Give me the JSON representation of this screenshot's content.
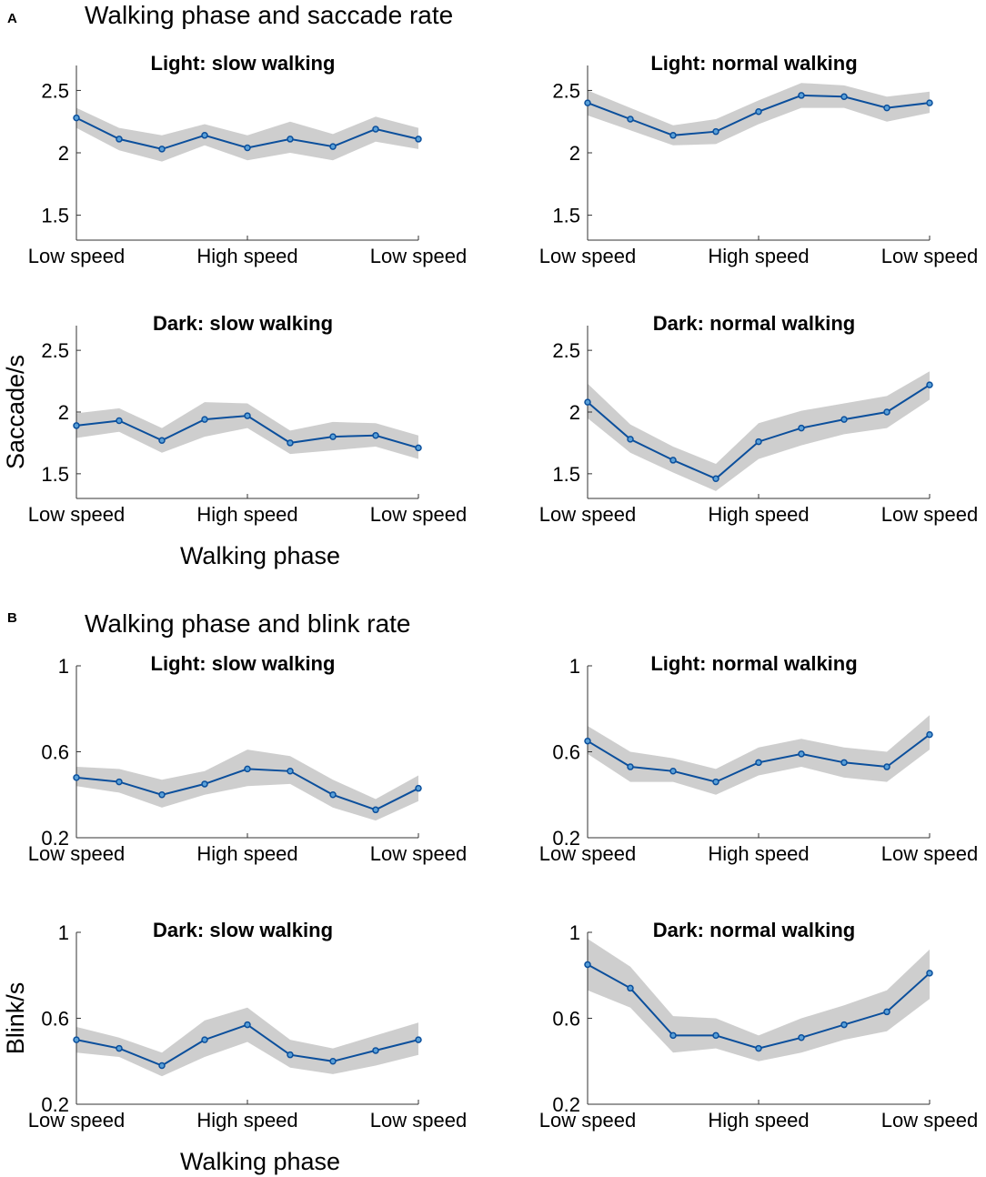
{
  "sections": [
    {
      "panel_label": "A",
      "title": "Walking phase and saccade rate"
    },
    {
      "panel_label": "B",
      "title": "Walking phase and blink rate"
    }
  ],
  "colors": {
    "line": "#0b4f9c",
    "marker_fill": "#5aa0d8",
    "band": "#bdbdbd"
  },
  "chart_data": [
    {
      "type": "line",
      "title": "Light: slow walking",
      "ylabel": "",
      "xlabel": "",
      "x_tick_labels": [
        "Low speed",
        "High speed",
        "Low speed"
      ],
      "x_tick_positions": [
        1,
        3,
        5
      ],
      "xlim": [
        1,
        5
      ],
      "ylim": [
        1.3,
        2.7
      ],
      "y_ticks": [
        1.5,
        2,
        2.5
      ],
      "y_tick_labels": [
        "1.5",
        "2",
        "2.5"
      ],
      "x": [
        1,
        1.5,
        2,
        2.5,
        3,
        3.5,
        4,
        4.5,
        5
      ],
      "series": [
        {
          "name": "mean",
          "values": [
            2.28,
            2.11,
            2.03,
            2.14,
            2.04,
            2.11,
            2.05,
            2.19,
            2.11
          ],
          "lower": [
            2.2,
            2.02,
            1.93,
            2.06,
            1.94,
            2.0,
            1.94,
            2.09,
            2.03
          ],
          "upper": [
            2.36,
            2.2,
            2.14,
            2.23,
            2.14,
            2.25,
            2.15,
            2.29,
            2.2
          ]
        }
      ]
    },
    {
      "type": "line",
      "title": "Light: normal walking",
      "ylabel": "",
      "xlabel": "",
      "x_tick_labels": [
        "Low speed",
        "High speed",
        "Low speed"
      ],
      "x_tick_positions": [
        1,
        3,
        5
      ],
      "xlim": [
        1,
        5
      ],
      "ylim": [
        1.3,
        2.7
      ],
      "y_ticks": [
        1.5,
        2,
        2.5
      ],
      "y_tick_labels": [
        "1.5",
        "2",
        "2.5"
      ],
      "x": [
        1,
        1.5,
        2,
        2.5,
        3,
        3.5,
        4,
        4.5,
        5
      ],
      "series": [
        {
          "name": "mean",
          "values": [
            2.4,
            2.27,
            2.14,
            2.17,
            2.33,
            2.46,
            2.45,
            2.36,
            2.4
          ],
          "lower": [
            2.3,
            2.18,
            2.06,
            2.07,
            2.23,
            2.36,
            2.36,
            2.25,
            2.32
          ],
          "upper": [
            2.5,
            2.36,
            2.22,
            2.27,
            2.42,
            2.56,
            2.54,
            2.45,
            2.49
          ]
        }
      ]
    },
    {
      "type": "line",
      "title": "Dark: slow walking",
      "ylabel": "Saccade/s",
      "xlabel": "Walking phase",
      "x_tick_labels": [
        "Low speed",
        "High speed",
        "Low speed"
      ],
      "x_tick_positions": [
        1,
        3,
        5
      ],
      "xlim": [
        1,
        5
      ],
      "ylim": [
        1.3,
        2.7
      ],
      "y_ticks": [
        1.5,
        2,
        2.5
      ],
      "y_tick_labels": [
        "1.5",
        "2",
        "2.5"
      ],
      "x": [
        1,
        1.5,
        2,
        2.5,
        3,
        3.5,
        4,
        4.5,
        5
      ],
      "series": [
        {
          "name": "mean",
          "values": [
            1.89,
            1.93,
            1.77,
            1.94,
            1.97,
            1.75,
            1.8,
            1.81,
            1.71
          ],
          "lower": [
            1.79,
            1.84,
            1.67,
            1.8,
            1.87,
            1.66,
            1.69,
            1.72,
            1.62
          ],
          "upper": [
            1.99,
            2.03,
            1.87,
            2.08,
            2.07,
            1.85,
            1.92,
            1.91,
            1.81
          ]
        }
      ]
    },
    {
      "type": "line",
      "title": "Dark: normal walking",
      "ylabel": "",
      "xlabel": "",
      "x_tick_labels": [
        "Low speed",
        "High speed",
        "Low speed"
      ],
      "x_tick_positions": [
        1,
        3,
        5
      ],
      "xlim": [
        1,
        5
      ],
      "ylim": [
        1.3,
        2.7
      ],
      "y_ticks": [
        1.5,
        2,
        2.5
      ],
      "y_tick_labels": [
        "1.5",
        "2",
        "2.5"
      ],
      "x": [
        1,
        1.5,
        2,
        2.5,
        3,
        3.5,
        4,
        4.5,
        5
      ],
      "series": [
        {
          "name": "mean",
          "values": [
            2.08,
            1.78,
            1.61,
            1.46,
            1.76,
            1.87,
            1.94,
            2.0,
            2.22
          ],
          "lower": [
            1.95,
            1.67,
            1.51,
            1.36,
            1.62,
            1.73,
            1.82,
            1.87,
            2.1
          ],
          "upper": [
            2.23,
            1.9,
            1.72,
            1.58,
            1.91,
            2.01,
            2.07,
            2.13,
            2.33
          ]
        }
      ]
    },
    {
      "type": "line",
      "title": "Light: slow walking",
      "ylabel": "",
      "xlabel": "",
      "x_tick_labels": [
        "Low speed",
        "High speed",
        "Low speed"
      ],
      "x_tick_positions": [
        1,
        3,
        5
      ],
      "xlim": [
        1,
        5
      ],
      "ylim": [
        0.2,
        1.0
      ],
      "y_ticks": [
        0.2,
        0.6,
        1
      ],
      "y_tick_labels": [
        "0.2",
        "0.6",
        "1"
      ],
      "x": [
        1,
        1.5,
        2,
        2.5,
        3,
        3.5,
        4,
        4.5,
        5
      ],
      "series": [
        {
          "name": "mean",
          "values": [
            0.48,
            0.46,
            0.4,
            0.45,
            0.52,
            0.51,
            0.4,
            0.33,
            0.43
          ],
          "lower": [
            0.44,
            0.41,
            0.34,
            0.4,
            0.44,
            0.45,
            0.34,
            0.28,
            0.37
          ],
          "upper": [
            0.53,
            0.52,
            0.47,
            0.51,
            0.61,
            0.58,
            0.47,
            0.38,
            0.49
          ]
        }
      ]
    },
    {
      "type": "line",
      "title": "Light: normal walking",
      "ylabel": "",
      "xlabel": "",
      "x_tick_labels": [
        "Low speed",
        "High speed",
        "Low speed"
      ],
      "x_tick_positions": [
        1,
        3,
        5
      ],
      "xlim": [
        1,
        5
      ],
      "ylim": [
        0.2,
        1.0
      ],
      "y_ticks": [
        0.2,
        0.6,
        1
      ],
      "y_tick_labels": [
        "0.2",
        "0.6",
        "1"
      ],
      "x": [
        1,
        1.5,
        2,
        2.5,
        3,
        3.5,
        4,
        4.5,
        5
      ],
      "series": [
        {
          "name": "mean",
          "values": [
            0.65,
            0.53,
            0.51,
            0.46,
            0.55,
            0.59,
            0.55,
            0.53,
            0.68
          ],
          "lower": [
            0.59,
            0.46,
            0.46,
            0.4,
            0.49,
            0.53,
            0.48,
            0.46,
            0.61
          ],
          "upper": [
            0.72,
            0.6,
            0.57,
            0.52,
            0.62,
            0.66,
            0.62,
            0.6,
            0.77
          ]
        }
      ]
    },
    {
      "type": "line",
      "title": "Dark: slow walking",
      "ylabel": "Blink/s",
      "xlabel": "Walking phase",
      "x_tick_labels": [
        "Low speed",
        "High speed",
        "Low speed"
      ],
      "x_tick_positions": [
        1,
        3,
        5
      ],
      "xlim": [
        1,
        5
      ],
      "ylim": [
        0.2,
        1.0
      ],
      "y_ticks": [
        0.2,
        0.6,
        1
      ],
      "y_tick_labels": [
        "0.2",
        "0.6",
        "1"
      ],
      "x": [
        1,
        1.5,
        2,
        2.5,
        3,
        3.5,
        4,
        4.5,
        5
      ],
      "series": [
        {
          "name": "mean",
          "values": [
            0.5,
            0.46,
            0.38,
            0.5,
            0.57,
            0.43,
            0.4,
            0.45,
            0.5
          ],
          "lower": [
            0.44,
            0.42,
            0.33,
            0.42,
            0.49,
            0.37,
            0.34,
            0.38,
            0.43
          ],
          "upper": [
            0.56,
            0.51,
            0.44,
            0.59,
            0.65,
            0.5,
            0.46,
            0.52,
            0.58
          ]
        }
      ]
    },
    {
      "type": "line",
      "title": "Dark: normal walking",
      "ylabel": "",
      "xlabel": "",
      "x_tick_labels": [
        "Low speed",
        "High speed",
        "Low speed"
      ],
      "x_tick_positions": [
        1,
        3,
        5
      ],
      "xlim": [
        1,
        5
      ],
      "ylim": [
        0.2,
        1.0
      ],
      "y_ticks": [
        0.2,
        0.6,
        1
      ],
      "y_tick_labels": [
        "0.2",
        "0.6",
        "1"
      ],
      "x": [
        1,
        1.5,
        2,
        2.5,
        3,
        3.5,
        4,
        4.5,
        5
      ],
      "series": [
        {
          "name": "mean",
          "values": [
            0.85,
            0.74,
            0.52,
            0.52,
            0.46,
            0.51,
            0.57,
            0.63,
            0.81
          ],
          "lower": [
            0.73,
            0.65,
            0.44,
            0.46,
            0.4,
            0.44,
            0.5,
            0.54,
            0.69
          ],
          "upper": [
            0.97,
            0.84,
            0.61,
            0.6,
            0.52,
            0.6,
            0.66,
            0.73,
            0.92
          ]
        }
      ]
    }
  ]
}
